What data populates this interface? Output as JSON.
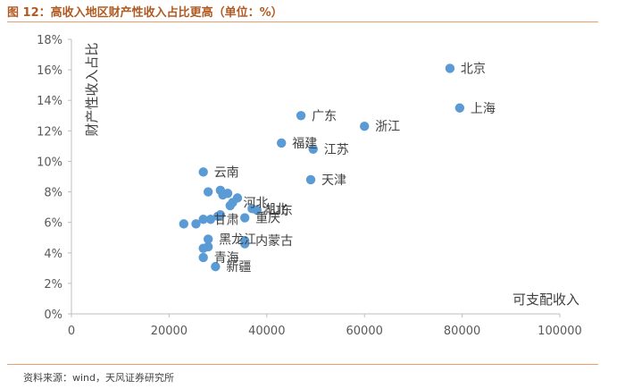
{
  "header": {
    "title": "图 12：高收入地区财产性收入占比更高（单位：%）"
  },
  "footer": {
    "source": "资料来源：wind，天风证券研究所"
  },
  "chart_data": {
    "type": "scatter",
    "xlabel": "可支配收入",
    "ylabel": "财产性收入占比",
    "xlim": [
      0,
      100000
    ],
    "ylim": [
      0,
      18
    ],
    "x_ticks": [
      "0",
      "20000",
      "40000",
      "60000",
      "80000",
      "100000"
    ],
    "y_ticks": [
      "0%",
      "2%",
      "4%",
      "6%",
      "8%",
      "10%",
      "12%",
      "14%",
      "16%",
      "18%"
    ],
    "grid": false,
    "color": "#5b9bd5",
    "points": [
      {
        "x": 77500,
        "y": 16.1,
        "label": "北京"
      },
      {
        "x": 79500,
        "y": 13.5,
        "label": "上海"
      },
      {
        "x": 47000,
        "y": 13.0,
        "label": "广东"
      },
      {
        "x": 60000,
        "y": 12.3,
        "label": "浙江"
      },
      {
        "x": 43000,
        "y": 11.2,
        "label": "福建"
      },
      {
        "x": 49500,
        "y": 10.8,
        "label": "江苏"
      },
      {
        "x": 49000,
        "y": 8.8,
        "label": "天津"
      },
      {
        "x": 27000,
        "y": 9.3,
        "label": "云南"
      },
      {
        "x": 33000,
        "y": 7.3,
        "label": "河北"
      },
      {
        "x": 37000,
        "y": 6.9,
        "label": "湖北"
      },
      {
        "x": 38000,
        "y": 6.8,
        "label": "山东"
      },
      {
        "x": 35500,
        "y": 6.3,
        "label": "重庆"
      },
      {
        "x": 27000,
        "y": 6.2,
        "label": "甘肃"
      },
      {
        "x": 28000,
        "y": 4.9,
        "label": "黑龙江"
      },
      {
        "x": 35500,
        "y": 4.8,
        "label": "内蒙古"
      },
      {
        "x": 27000,
        "y": 3.7,
        "label": "青海"
      },
      {
        "x": 29500,
        "y": 3.1,
        "label": "新疆"
      },
      {
        "x": 28000,
        "y": 8.0,
        "label": ""
      },
      {
        "x": 30500,
        "y": 8.1,
        "label": ""
      },
      {
        "x": 31000,
        "y": 7.8,
        "label": ""
      },
      {
        "x": 32000,
        "y": 7.9,
        "label": ""
      },
      {
        "x": 34000,
        "y": 7.6,
        "label": ""
      },
      {
        "x": 32500,
        "y": 7.1,
        "label": ""
      },
      {
        "x": 23000,
        "y": 5.9,
        "label": ""
      },
      {
        "x": 25500,
        "y": 5.9,
        "label": ""
      },
      {
        "x": 28500,
        "y": 6.2,
        "label": ""
      },
      {
        "x": 30000,
        "y": 6.4,
        "label": ""
      },
      {
        "x": 30500,
        "y": 6.5,
        "label": ""
      },
      {
        "x": 27000,
        "y": 4.3,
        "label": ""
      },
      {
        "x": 28000,
        "y": 4.4,
        "label": ""
      },
      {
        "x": 35500,
        "y": 4.6,
        "label": ""
      }
    ]
  }
}
